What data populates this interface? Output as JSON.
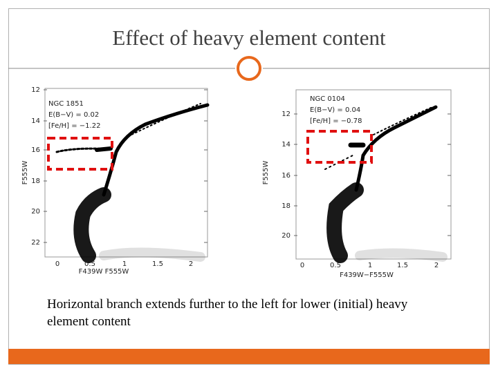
{
  "slide": {
    "title": "Effect of heavy element content",
    "caption": "Horizontal branch extends further to the left for lower (initial) heavy element content",
    "panels": [
      {
        "labels": [
          "NGC 1851",
          "E(B−V) = 0.02",
          "[Fe/H] = −1.22"
        ],
        "yticks": [
          "12",
          "14",
          "16",
          "18",
          "20",
          "22"
        ],
        "xticks": [
          "0",
          "0.5",
          "1",
          "1.5",
          "2"
        ],
        "xlabel": "F439W F555W",
        "ylabel": "F555W"
      },
      {
        "labels": [
          "NGC 0104",
          "E(B−V) = 0.04",
          "[Fe/H] = −0.78"
        ],
        "yticks": [
          "12",
          "14",
          "16",
          "18",
          "20"
        ],
        "xticks": [
          "0",
          "0.5",
          "1",
          "1.5",
          "2"
        ],
        "xlabel": "F439W−F555W",
        "ylabel": "F555W"
      }
    ]
  }
}
